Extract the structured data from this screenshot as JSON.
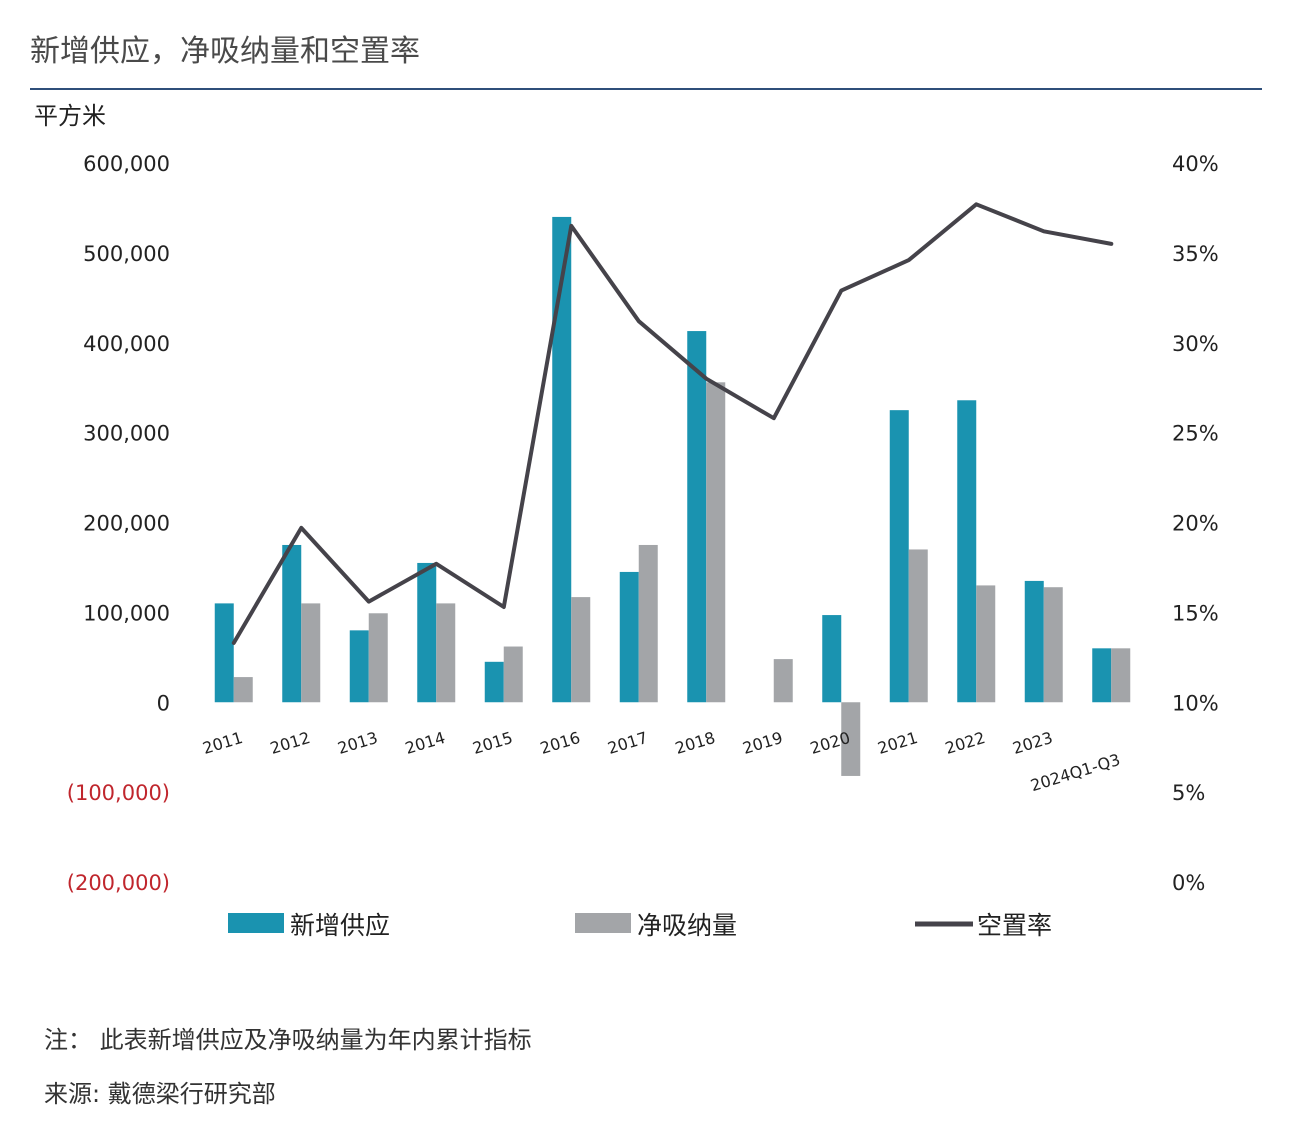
{
  "title": "新增供应，净吸纳量和空置率",
  "unit_label": "平方米",
  "notes": {
    "note": "注：  此表新增供应及净吸纳量为年内累计指标",
    "source": "来源: 戴德梁行研究部"
  },
  "colors": {
    "supply": "#1a93b0",
    "absorption": "#a3a5a8",
    "vacancy": "#45434a",
    "negative_tick": "#c0262d",
    "rule": "#2f4f7a"
  },
  "chart_data": {
    "type": "bar",
    "title": "新增供应，净吸纳量和空置率",
    "ylabel": "平方米",
    "categories": [
      "2011",
      "2012",
      "2013",
      "2014",
      "2015",
      "2016",
      "2017",
      "2018",
      "2019",
      "2020",
      "2021",
      "2022",
      "2023",
      "2024Q1-Q3"
    ],
    "series": [
      {
        "name": "新增供应",
        "type": "bar",
        "axis": "left",
        "values": [
          110000,
          175000,
          80000,
          155000,
          45000,
          540000,
          145000,
          413000,
          0,
          97000,
          325000,
          336000,
          135000,
          60000
        ]
      },
      {
        "name": "净吸纳量",
        "type": "bar",
        "axis": "left",
        "values": [
          28000,
          110000,
          99000,
          110000,
          62000,
          117000,
          175000,
          356000,
          48000,
          -82000,
          170000,
          130000,
          128000,
          60000
        ]
      },
      {
        "name": "空置率",
        "type": "line",
        "axis": "right",
        "values": [
          13.3,
          19.7,
          15.6,
          17.7,
          15.3,
          36.5,
          31.2,
          28.0,
          25.8,
          32.9,
          34.6,
          37.7,
          36.2,
          35.5
        ]
      }
    ],
    "left_axis": {
      "ylim": [
        -200000,
        600000
      ],
      "ticks": [
        {
          "value": 600000,
          "label": "600,000"
        },
        {
          "value": 500000,
          "label": "500,000"
        },
        {
          "value": 400000,
          "label": "400,000"
        },
        {
          "value": 300000,
          "label": "300,000"
        },
        {
          "value": 200000,
          "label": "200,000"
        },
        {
          "value": 100000,
          "label": "100,000"
        },
        {
          "value": 0,
          "label": "0"
        },
        {
          "value": -100000,
          "label": "(100,000)"
        },
        {
          "value": -200000,
          "label": "(200,000)"
        }
      ]
    },
    "right_axis": {
      "ylim": [
        0,
        40
      ],
      "ticks": [
        {
          "value": 40,
          "label": "40%"
        },
        {
          "value": 35,
          "label": "35%"
        },
        {
          "value": 30,
          "label": "30%"
        },
        {
          "value": 25,
          "label": "25%"
        },
        {
          "value": 20,
          "label": "20%"
        },
        {
          "value": 15,
          "label": "15%"
        },
        {
          "value": 10,
          "label": "10%"
        },
        {
          "value": 5,
          "label": "5%"
        },
        {
          "value": 0,
          "label": "0%"
        }
      ]
    },
    "grid": false,
    "legend_position": "bottom"
  }
}
